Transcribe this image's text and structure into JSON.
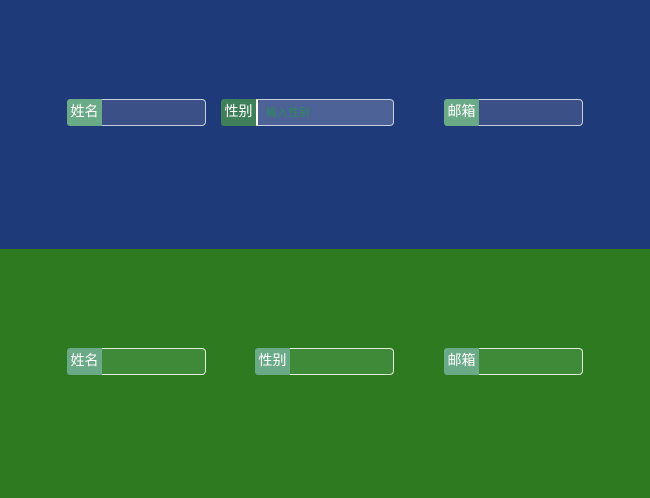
{
  "top": {
    "fields": [
      {
        "label": "姓名",
        "value": "",
        "placeholder": ""
      },
      {
        "label": "性别",
        "value": "",
        "placeholder": "输入性别"
      },
      {
        "label": "邮箱",
        "value": "",
        "placeholder": ""
      }
    ]
  },
  "bottom": {
    "fields": [
      {
        "label": "姓名",
        "value": "",
        "placeholder": ""
      },
      {
        "label": "性别",
        "value": "",
        "placeholder": ""
      },
      {
        "label": "邮箱",
        "value": "",
        "placeholder": ""
      }
    ]
  },
  "colors": {
    "top_bg": "#1e3a78",
    "bottom_bg": "#2e7a21",
    "label_bg": "#6aaa86"
  }
}
